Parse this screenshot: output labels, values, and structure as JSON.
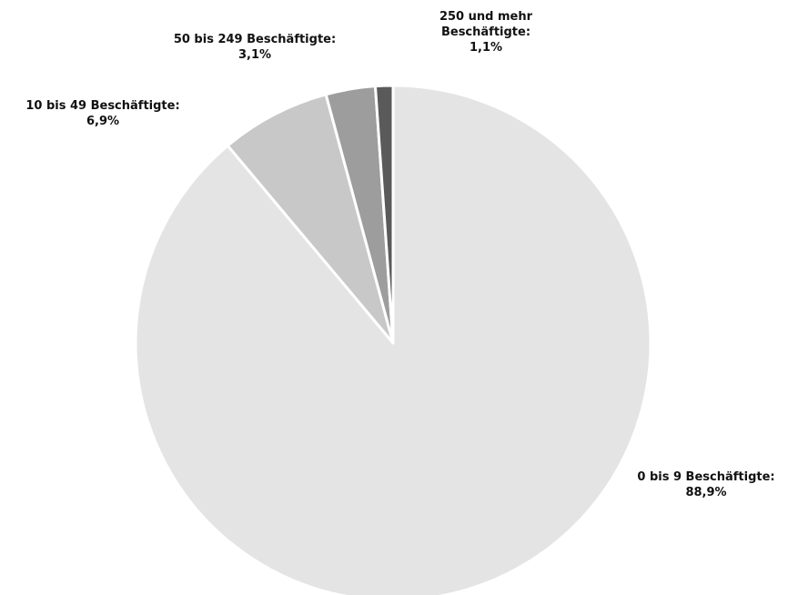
{
  "chart_data": {
    "type": "pie",
    "categories": [
      "0 bis 9 Beschäftigte:",
      "10 bis 49 Beschäftigte:",
      "50 bis 249 Beschäftigte:",
      "250 und mehr Beschäftigte:"
    ],
    "values": [
      88.9,
      6.9,
      3.1,
      1.1
    ],
    "value_labels": [
      "88,9%",
      "6,9%",
      "3,1%",
      "1,1%"
    ],
    "colors": [
      "#e4e4e4",
      "#c8c8c8",
      "#9d9d9d",
      "#5a5a5a"
    ]
  }
}
